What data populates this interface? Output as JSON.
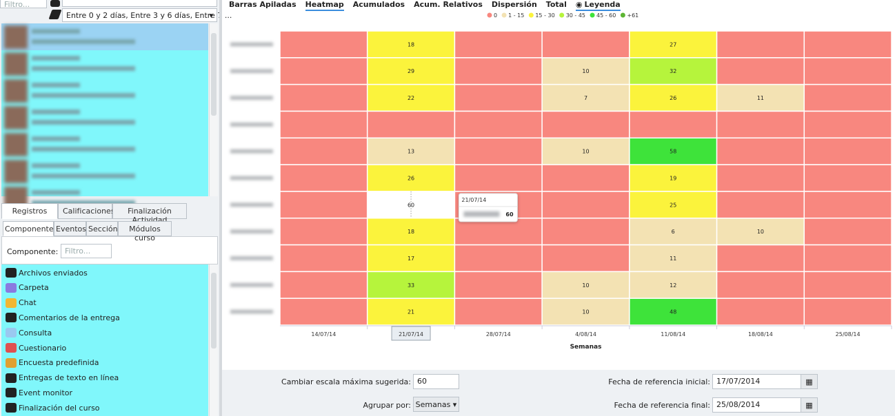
{
  "filter_panel": {
    "search_placeholder": "Filtro...",
    "range_selector": "Entre 0 y 2 días, Entre 3 y 6 días, Entre 7 ..."
  },
  "lower_tabs": {
    "row1": [
      "Registros",
      "Calificaciones",
      "Finalización Actividad"
    ],
    "row2": [
      "Componentes",
      "Eventos",
      "Sección",
      "Módulos curso"
    ]
  },
  "component_filter": {
    "label": "Componente:",
    "placeholder": "Filtro..."
  },
  "components": [
    "Archivos enviados",
    "Carpeta",
    "Chat",
    "Comentarios de la entrega",
    "Consulta",
    "Cuestionario",
    "Encuesta predefinida",
    "Entregas de texto en línea",
    "Event monitor",
    "Finalización del curso"
  ],
  "chart_tabs": [
    "Barras Apiladas",
    "Heatmap",
    "Acumulados",
    "Acum. Relativos",
    "Dispersión",
    "Total"
  ],
  "active_tab": 1,
  "legend_toggle": "Leyenda",
  "chart_data": {
    "type": "heatmap",
    "x_label": "Semanas",
    "categories": [
      "14/07/14",
      "21/07/14",
      "28/07/14",
      "4/08/14",
      "11/08/14",
      "18/08/14",
      "25/08/14"
    ],
    "rows": [
      [
        0,
        18,
        0,
        0,
        27,
        0,
        0
      ],
      [
        0,
        29,
        0,
        10,
        32,
        0,
        0
      ],
      [
        0,
        22,
        0,
        7,
        26,
        11,
        0
      ],
      [
        0,
        0,
        0,
        0,
        0,
        0,
        0
      ],
      [
        0,
        13,
        0,
        10,
        58,
        0,
        0
      ],
      [
        0,
        26,
        0,
        0,
        19,
        0,
        0
      ],
      [
        0,
        60,
        0,
        0,
        25,
        0,
        0
      ],
      [
        0,
        18,
        0,
        0,
        6,
        10,
        0
      ],
      [
        0,
        17,
        0,
        0,
        11,
        0,
        0
      ],
      [
        0,
        33,
        0,
        10,
        12,
        0,
        0
      ],
      [
        0,
        21,
        0,
        10,
        48,
        0,
        0
      ]
    ],
    "legend": [
      {
        "label": "0",
        "color": "#f8877f",
        "min": 0
      },
      {
        "label": "1 - 15",
        "color": "#f3e2b3",
        "min": 1
      },
      {
        "label": "15 - 30",
        "color": "#fbf33c",
        "min": 15
      },
      {
        "label": "30 - 45",
        "color": "#b6f43c",
        "min": 30
      },
      {
        "label": "45 - 60",
        "color": "#3ee33a",
        "min": 45
      },
      {
        "label": "+61",
        "color": "#5db534",
        "min": 61
      }
    ],
    "hovered_cell": {
      "row": 6,
      "column": 1
    },
    "tooltip": {
      "title": "21/07/14",
      "value": 60
    }
  },
  "controls": {
    "scale_label": "Cambiar escala máxima sugerida:",
    "scale_value": 60,
    "group_label": "Agrupar por:",
    "group_value": "Semanas",
    "start_label": "Fecha de referencia inicial:",
    "start_value": "17/07/2014",
    "end_label": "Fecha de referencia final:",
    "end_value": "25/08/2014"
  }
}
